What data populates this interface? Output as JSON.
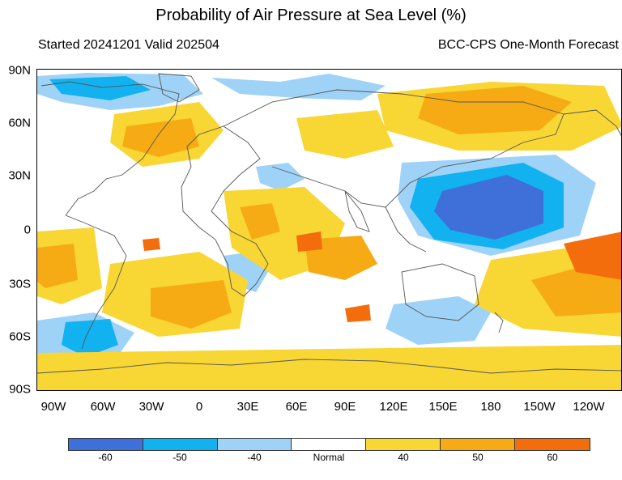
{
  "title": "Probability of Air Pressure at Sea Level (%)",
  "subtitle_left": "Started 20241201  Valid 202504",
  "subtitle_right": "BCC-CPS One-Month Forecast",
  "lat_labels": [
    "90N",
    "60N",
    "30N",
    "0",
    "30S",
    "60S",
    "90S"
  ],
  "lon_labels": [
    "90W",
    "60W",
    "30W",
    "0",
    "30E",
    "60E",
    "90E",
    "120E",
    "150E",
    "180",
    "150W",
    "120W"
  ],
  "legend": {
    "labels": [
      "-60",
      "-50",
      "-40",
      "Normal",
      "40",
      "50",
      "60"
    ],
    "colors": [
      "#3f6fd9",
      "#12b2f0",
      "#9ed3f7",
      "#ffffff",
      "#f8d634",
      "#f6ab14",
      "#f46d0d"
    ]
  },
  "palette": {
    "deep_blue": "#3f6fd9",
    "mid_blue": "#12b2f0",
    "light_blue": "#9ed3f7",
    "light_orange": "#f8d634",
    "mid_orange": "#f6ab14",
    "deep_orange": "#f46d0d",
    "coastline": "#555555"
  }
}
